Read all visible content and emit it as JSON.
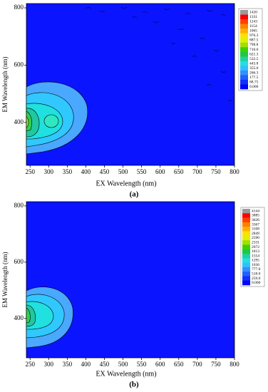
{
  "chart_data": [
    {
      "type": "contour",
      "caption": "(a)",
      "xlabel": "EX Wavelength (nm)",
      "ylabel": "EM Wavelength (nm)",
      "xlim": [
        240,
        800
      ],
      "ylim": [
        250,
        815
      ],
      "xticks": [
        250,
        300,
        350,
        400,
        450,
        500,
        550,
        600,
        650,
        700,
        750,
        800
      ],
      "yticks": [
        400,
        600,
        800
      ],
      "colorbar_ticks": [
        1420,
        1331,
        1243,
        1154,
        1065,
        976.3,
        887.5,
        798.8,
        {
          "value": 710,
          "label": "710.0"
        },
        621.3,
        532.5,
        443.8,
        {
          "value": 355,
          "label": "355.0"
        },
        266.3,
        177.5,
        88.75,
        {
          "value": 0,
          "label": "0.000"
        }
      ],
      "colorbar_colors": [
        "#9a9a9a",
        "#ff0000",
        "#ff4000",
        "#ff8000",
        "#ffb000",
        "#ffe000",
        "#e0f000",
        "#a0e000",
        "#40d000",
        "#20c840",
        "#20d0a0",
        "#20e0e0",
        "#30c0ff",
        "#3090ff",
        "#2060ff",
        "#1030ff",
        "#0000ff"
      ]
    },
    {
      "type": "contour",
      "caption": "(b)",
      "xlabel": "EX Wavelength (nm)",
      "ylabel": "EM Wavelength (nm)",
      "xlim": [
        240,
        800
      ],
      "ylim": [
        260,
        815
      ],
      "xticks": [
        250,
        300,
        350,
        400,
        450,
        500,
        550,
        600,
        650,
        700,
        750,
        800
      ],
      "yticks": [
        400,
        600,
        800
      ],
      "colorbar_ticks": [
        4144,
        3885,
        3626,
        3367,
        3108,
        2849,
        2590,
        2331,
        2072,
        1813,
        1554,
        1295,
        1036,
        {
          "value": 777,
          "label": "777.0"
        },
        {
          "value": 518,
          "label": "518.0"
        },
        {
          "value": 259,
          "label": "259.0"
        },
        {
          "value": 0,
          "label": "0.000"
        }
      ],
      "colorbar_colors": [
        "#9a9a9a",
        "#ff0000",
        "#ff4000",
        "#ff8000",
        "#ffb000",
        "#ffe000",
        "#e0f000",
        "#a0e000",
        "#40d000",
        "#20c840",
        "#20d0a0",
        "#20e0e0",
        "#30c0ff",
        "#3090ff",
        "#2060ff",
        "#1030ff",
        "#0000ff"
      ]
    }
  ]
}
